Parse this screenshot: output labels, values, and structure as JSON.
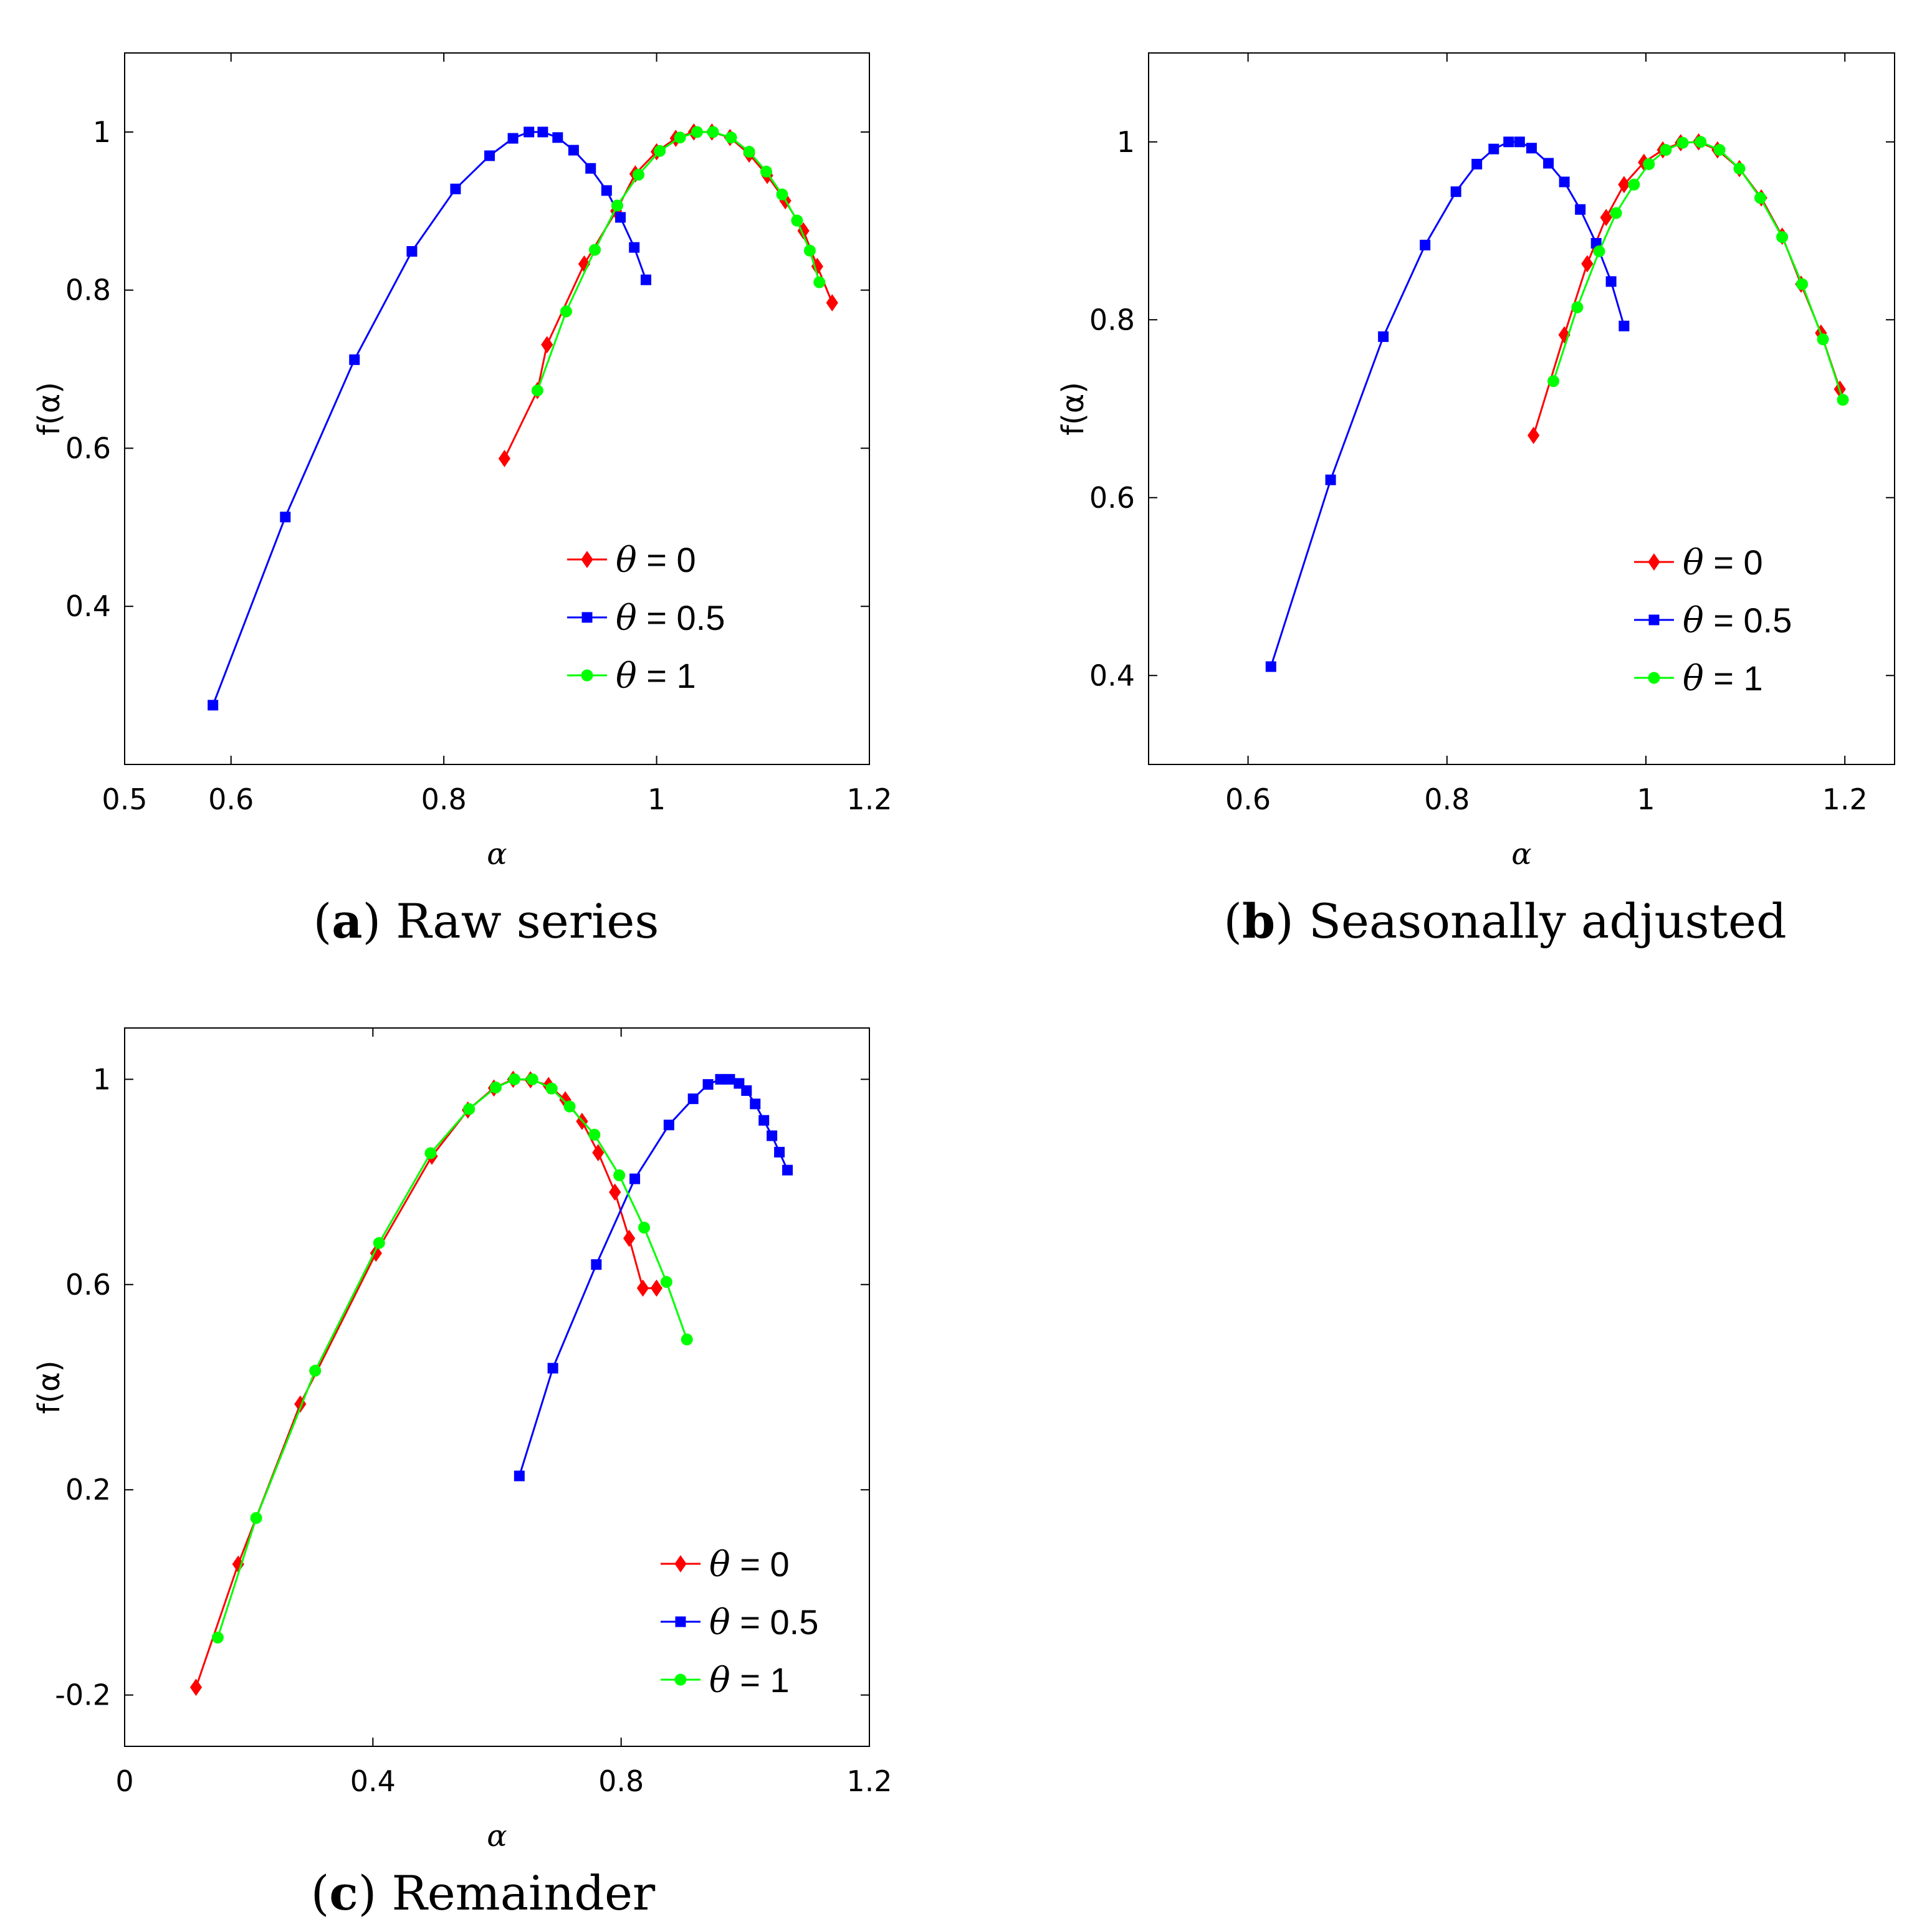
{
  "legend_symbol": "θ",
  "chart_data": [
    {
      "type": "line",
      "caption_letter": "a",
      "caption_text": "Raw series",
      "xlabel": "α",
      "ylabel": "f(α)",
      "xlim": [
        0.5,
        1.2
      ],
      "ylim": [
        0.2,
        1.1
      ],
      "xticks": [
        0.5,
        0.6,
        0.8,
        1,
        1.2
      ],
      "xtick_labels": [
        "0.5",
        "0.6",
        "0.8",
        "1",
        "1.2"
      ],
      "yticks": [
        0.4,
        0.6,
        0.8,
        1
      ],
      "ytick_labels": [
        "0.4",
        "0.6",
        "0.8",
        "1"
      ],
      "legend_position": "lower-right",
      "series": [
        {
          "name": "θ = 0",
          "theta": "0",
          "color": "#ff0000",
          "marker": "diamond",
          "x": [
            0.857,
            0.888,
            0.897,
            0.932,
            0.962,
            0.98,
            1.0,
            1.018,
            1.035,
            1.052,
            1.069,
            1.087,
            1.104,
            1.121,
            1.138,
            1.151,
            1.165
          ],
          "y": [
            0.587,
            0.673,
            0.731,
            0.833,
            0.9,
            0.947,
            0.975,
            0.992,
            1.0,
            1.0,
            0.993,
            0.972,
            0.945,
            0.913,
            0.875,
            0.83,
            0.784
          ]
        },
        {
          "name": "θ = 0.5",
          "theta": "0.5",
          "color": "#0000ff",
          "marker": "square",
          "x": [
            0.583,
            0.651,
            0.716,
            0.77,
            0.811,
            0.843,
            0.865,
            0.88,
            0.893,
            0.907,
            0.922,
            0.938,
            0.953,
            0.966,
            0.979,
            0.99
          ],
          "y": [
            0.275,
            0.513,
            0.712,
            0.849,
            0.928,
            0.97,
            0.992,
            1.0,
            1.0,
            0.993,
            0.977,
            0.954,
            0.926,
            0.892,
            0.854,
            0.813
          ]
        },
        {
          "name": "θ = 1",
          "theta": "1",
          "color": "#00ff00",
          "marker": "circle",
          "x": [
            0.888,
            0.915,
            0.942,
            0.963,
            0.983,
            1.003,
            1.022,
            1.038,
            1.053,
            1.07,
            1.087,
            1.103,
            1.118,
            1.132,
            1.144,
            1.153
          ],
          "y": [
            0.673,
            0.773,
            0.851,
            0.907,
            0.946,
            0.976,
            0.993,
            1.0,
            1.0,
            0.993,
            0.975,
            0.95,
            0.921,
            0.888,
            0.85,
            0.81
          ]
        }
      ]
    },
    {
      "type": "line",
      "caption_letter": "b",
      "caption_text": "Seasonally adjusted",
      "xlabel": "α",
      "ylabel": "f(α)",
      "xlim": [
        0.5,
        1.25
      ],
      "ylim": [
        0.3,
        1.1
      ],
      "xticks": [
        0.6,
        0.8,
        1,
        1.2
      ],
      "xtick_labels": [
        "0.6",
        "0.8",
        "1",
        "1.2"
      ],
      "yticks": [
        0.4,
        0.6,
        0.8,
        1
      ],
      "ytick_labels": [
        "0.4",
        "0.6",
        "0.8",
        "1"
      ],
      "legend_position": "lower-right",
      "series": [
        {
          "name": "θ = 0",
          "theta": "0",
          "color": "#ff0000",
          "marker": "diamond",
          "x": [
            0.887,
            0.918,
            0.941,
            0.96,
            0.978,
            0.998,
            1.017,
            1.035,
            1.053,
            1.072,
            1.094,
            1.116,
            1.137,
            1.156,
            1.176,
            1.195
          ],
          "y": [
            0.67,
            0.783,
            0.863,
            0.915,
            0.952,
            0.977,
            0.991,
            0.999,
            1.0,
            0.991,
            0.97,
            0.937,
            0.894,
            0.84,
            0.785,
            0.722
          ]
        },
        {
          "name": "θ = 0.5",
          "theta": "0.5",
          "color": "#0000ff",
          "marker": "square",
          "x": [
            0.623,
            0.683,
            0.736,
            0.778,
            0.809,
            0.83,
            0.847,
            0.862,
            0.873,
            0.885,
            0.902,
            0.918,
            0.934,
            0.95,
            0.965,
            0.978
          ],
          "y": [
            0.41,
            0.62,
            0.781,
            0.884,
            0.944,
            0.975,
            0.992,
            1.0,
            1.0,
            0.993,
            0.976,
            0.955,
            0.924,
            0.886,
            0.843,
            0.793
          ]
        },
        {
          "name": "θ = 1",
          "theta": "1",
          "color": "#00ff00",
          "marker": "circle",
          "x": [
            0.907,
            0.931,
            0.953,
            0.97,
            0.988,
            1.003,
            1.02,
            1.037,
            1.055,
            1.074,
            1.094,
            1.115,
            1.137,
            1.157,
            1.178,
            1.198
          ],
          "y": [
            0.731,
            0.814,
            0.877,
            0.92,
            0.952,
            0.975,
            0.991,
            0.999,
            1.0,
            0.991,
            0.97,
            0.937,
            0.893,
            0.84,
            0.778,
            0.71
          ]
        }
      ]
    },
    {
      "type": "line",
      "caption_letter": "c",
      "caption_text": "Remainder",
      "xlabel": "α",
      "ylabel": "f(α)",
      "xlim": [
        0,
        1.2
      ],
      "ylim": [
        -0.3,
        1.1
      ],
      "xticks": [
        0,
        0.4,
        0.8,
        1.2
      ],
      "xtick_labels": [
        "0",
        "0.4",
        "0.8",
        "1.2"
      ],
      "yticks": [
        -0.2,
        0.2,
        0.6,
        1
      ],
      "ytick_labels": [
        "-0.2",
        "0.2",
        "0.6",
        "1"
      ],
      "legend_position": "lower-right",
      "series": [
        {
          "name": "θ = 0",
          "theta": "0",
          "color": "#ff0000",
          "marker": "diamond",
          "x": [
            0.115,
            0.183,
            0.283,
            0.405,
            0.495,
            0.553,
            0.595,
            0.626,
            0.654,
            0.683,
            0.71,
            0.737,
            0.763,
            0.79,
            0.813,
            0.835,
            0.857
          ],
          "y": [
            -0.185,
            0.055,
            0.367,
            0.661,
            0.85,
            0.94,
            0.983,
            1.0,
            0.999,
            0.988,
            0.96,
            0.918,
            0.857,
            0.78,
            0.69,
            0.593,
            0.593
          ]
        },
        {
          "name": "θ = 0.5",
          "theta": "0.5",
          "color": "#0000ff",
          "marker": "square",
          "x": [
            0.636,
            0.69,
            0.76,
            0.822,
            0.877,
            0.916,
            0.94,
            0.96,
            0.975,
            0.99,
            1.002,
            1.016,
            1.03,
            1.043,
            1.055,
            1.068
          ],
          "y": [
            0.227,
            0.437,
            0.639,
            0.806,
            0.911,
            0.962,
            0.99,
            1.0,
            1.0,
            0.992,
            0.978,
            0.952,
            0.92,
            0.89,
            0.858,
            0.823
          ]
        },
        {
          "name": "θ = 1",
          "theta": "1",
          "color": "#00ff00",
          "marker": "circle",
          "x": [
            0.15,
            0.212,
            0.307,
            0.41,
            0.493,
            0.555,
            0.598,
            0.628,
            0.657,
            0.688,
            0.717,
            0.757,
            0.797,
            0.837,
            0.873,
            0.906
          ],
          "y": [
            -0.088,
            0.145,
            0.432,
            0.681,
            0.856,
            0.942,
            0.984,
            1.0,
            1.0,
            0.982,
            0.947,
            0.892,
            0.813,
            0.711,
            0.605,
            0.493
          ]
        }
      ]
    }
  ]
}
